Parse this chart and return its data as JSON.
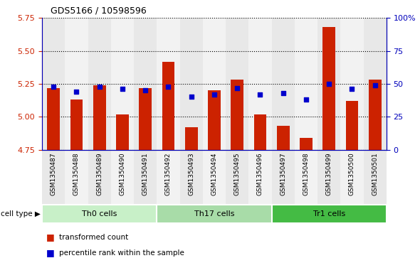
{
  "title": "GDS5166 / 10598596",
  "samples": [
    "GSM1350487",
    "GSM1350488",
    "GSM1350489",
    "GSM1350490",
    "GSM1350491",
    "GSM1350492",
    "GSM1350493",
    "GSM1350494",
    "GSM1350495",
    "GSM1350496",
    "GSM1350497",
    "GSM1350498",
    "GSM1350499",
    "GSM1350500",
    "GSM1350501"
  ],
  "red_values": [
    5.22,
    5.13,
    5.24,
    5.02,
    5.22,
    5.42,
    4.92,
    5.2,
    5.28,
    5.02,
    4.93,
    4.84,
    5.68,
    5.12,
    5.28
  ],
  "blue_values": [
    48,
    44,
    48,
    46,
    45,
    48,
    40,
    42,
    47,
    42,
    43,
    38,
    50,
    46,
    49
  ],
  "cell_types": [
    {
      "label": "Th0 cells",
      "start": 0,
      "end": 5,
      "color": "#c8f0c8"
    },
    {
      "label": "Th17 cells",
      "start": 5,
      "end": 10,
      "color": "#a8dca8"
    },
    {
      "label": "Tr1 cells",
      "start": 10,
      "end": 15,
      "color": "#44bb44"
    }
  ],
  "ylim_left": [
    4.75,
    5.75
  ],
  "ylim_right": [
    0,
    100
  ],
  "yticks_left": [
    4.75,
    5.0,
    5.25,
    5.5,
    5.75
  ],
  "yticks_right": [
    0,
    25,
    50,
    75,
    100
  ],
  "ytick_labels_right": [
    "0",
    "25",
    "50",
    "75",
    "100%"
  ],
  "bar_color": "#cc2200",
  "dot_color": "#0000cc",
  "bar_bottom": 4.75,
  "col_bg_even": "#e8e8e8",
  "col_bg_odd": "#f2f2f2"
}
